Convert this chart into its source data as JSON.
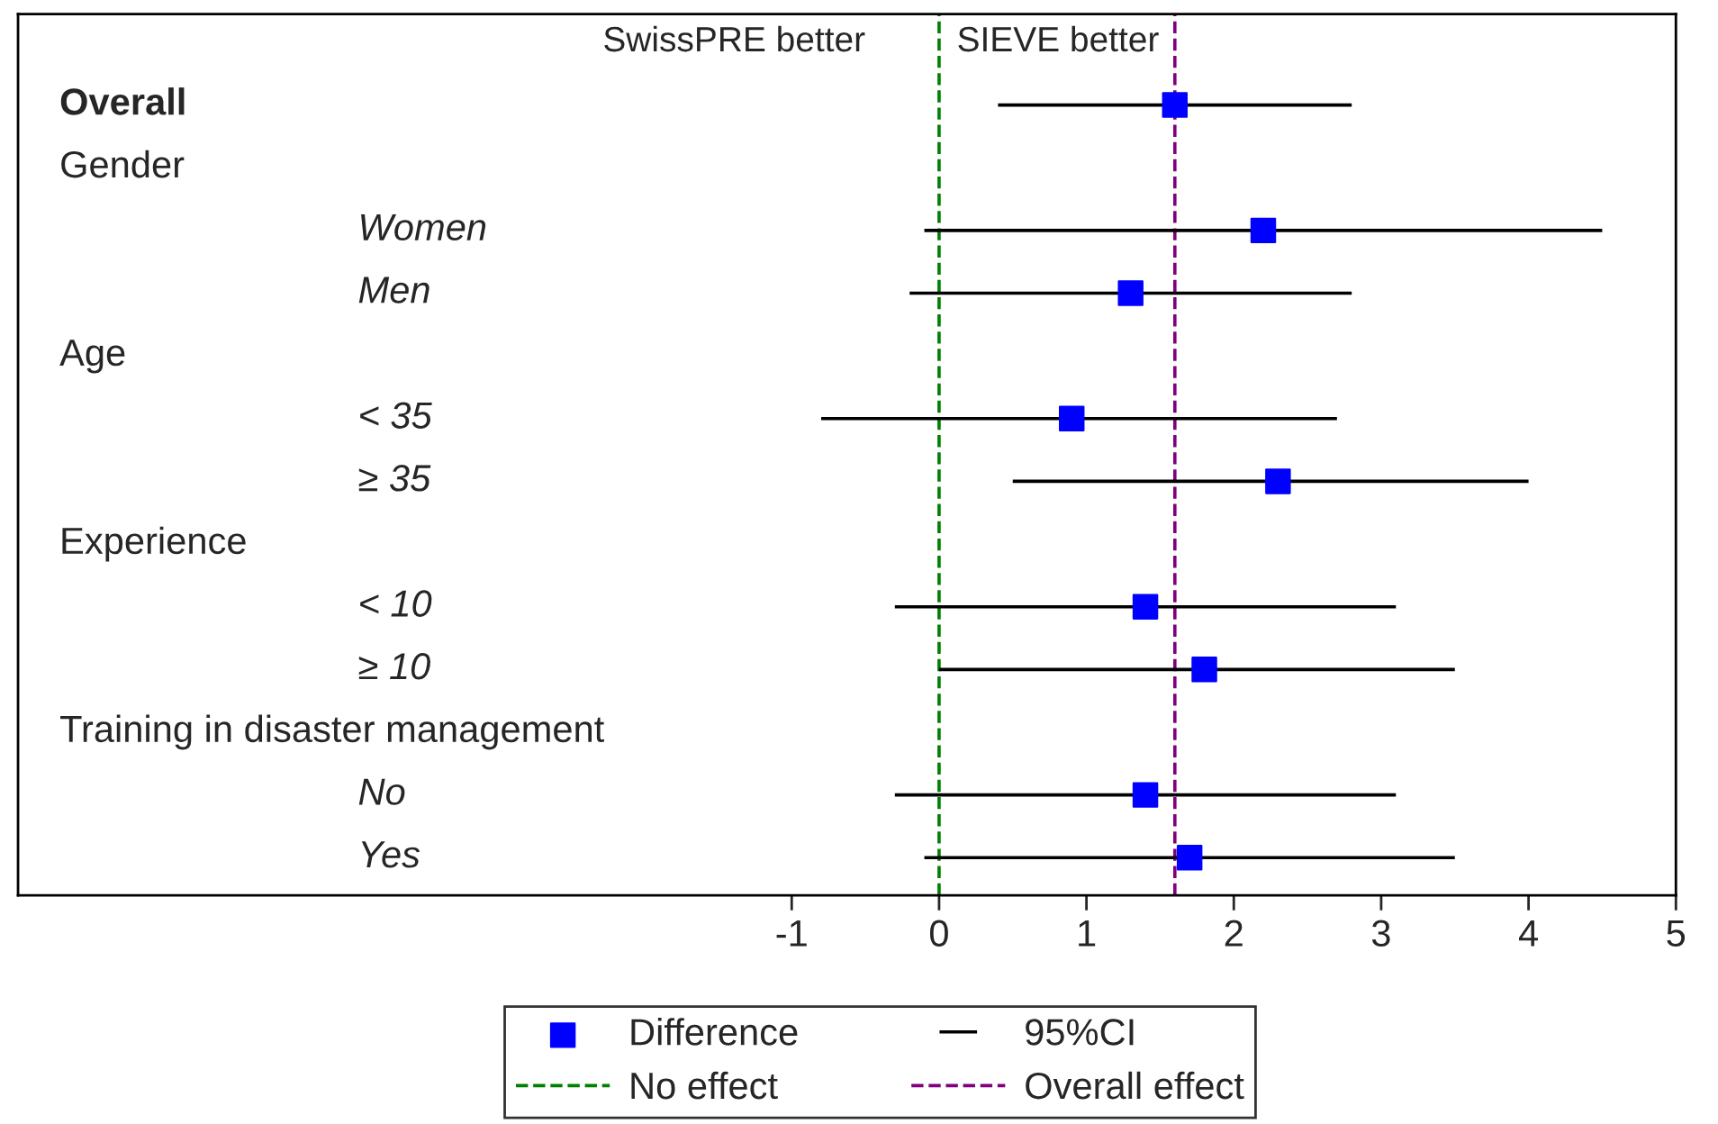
{
  "chart_data": {
    "type": "scatter",
    "categories": [
      "Overall",
      "Gender",
      "Women",
      "Men",
      "Age",
      "< 35",
      "≥ 35",
      "Experience",
      "< 10",
      "≥ 10",
      "Training in disaster management",
      "No",
      "Yes"
    ],
    "series": [
      {
        "name": "Difference",
        "color": "#0000ff",
        "values": [
          1.6,
          null,
          2.2,
          1.3,
          null,
          0.9,
          2.3,
          null,
          1.4,
          1.8,
          null,
          1.4,
          1.7
        ],
        "errors": [
          [
            0.4,
            2.8
          ],
          null,
          [
            -0.1,
            4.5
          ],
          [
            -0.2,
            2.8
          ],
          null,
          [
            -0.8,
            2.7
          ],
          [
            0.5,
            4.0
          ],
          null,
          [
            -0.3,
            3.1
          ],
          [
            0.0,
            3.5
          ],
          null,
          [
            -0.3,
            3.1
          ],
          [
            -0.1,
            3.5
          ]
        ]
      }
    ],
    "orientation": "horizontal",
    "marker": "square",
    "xlim": [
      -6.25,
      5.0
    ],
    "xticks": [
      -1,
      0,
      1,
      2,
      3,
      4,
      5
    ],
    "ref_lines": [
      {
        "axis": "x",
        "value": 0,
        "label": "No effect",
        "color": "#008000",
        "line_style": "dashed"
      },
      {
        "axis": "x",
        "value": 1.6,
        "label": "Overall effect",
        "color": "#800080",
        "line_style": "dashed"
      }
    ],
    "annotations": [
      "SwissPRE better",
      "SIEVE better",
      "95%CI"
    ],
    "legend": "bottom",
    "grid": false
  }
}
